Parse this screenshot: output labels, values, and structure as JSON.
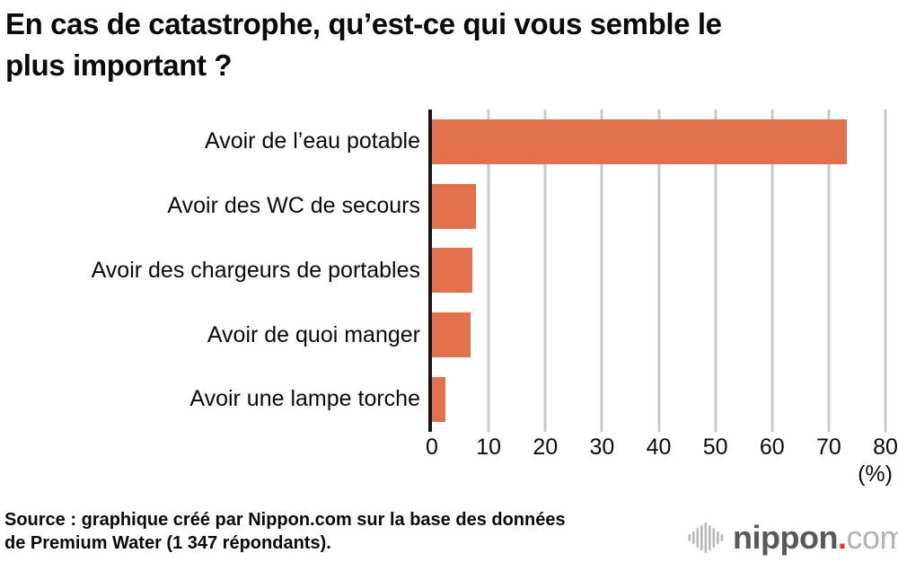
{
  "title": {
    "line1": "En cas de catastrophe, qu’est-ce qui vous semble le",
    "line2": "plus important ?"
  },
  "chart_data": {
    "type": "bar",
    "orientation": "horizontal",
    "title": "En cas de catastrophe, qu’est-ce qui vous semble le plus important ?",
    "categories": [
      "Avoir de l’eau potable",
      "Avoir des WC de secours",
      "Avoir des chargeurs de portables",
      "Avoir de quoi manger",
      "Avoir une lampe torche"
    ],
    "values": [
      73.2,
      7.7,
      7.2,
      6.8,
      2.3
    ],
    "xlabel": "(%)",
    "xlim": [
      0,
      80
    ],
    "x_ticks": [
      0,
      10,
      20,
      30,
      40,
      50,
      60,
      70,
      80
    ],
    "grid": true,
    "legend": "none",
    "bar_color": "#E2714E",
    "gridline_color": "#C9C9C9",
    "axis_color": "#161616"
  },
  "source": {
    "line1": "Source : graphique créé par Nippon.com sur la base des données",
    "line2": "de Premium Water (1 347 répondants)."
  },
  "logo": {
    "icon": "waveform-icon",
    "brand": "nippon",
    "dot": ".",
    "tld": "com",
    "brand_color": "#595959",
    "dot_color": "#E8331F",
    "tld_color": "#B3B3B3"
  }
}
